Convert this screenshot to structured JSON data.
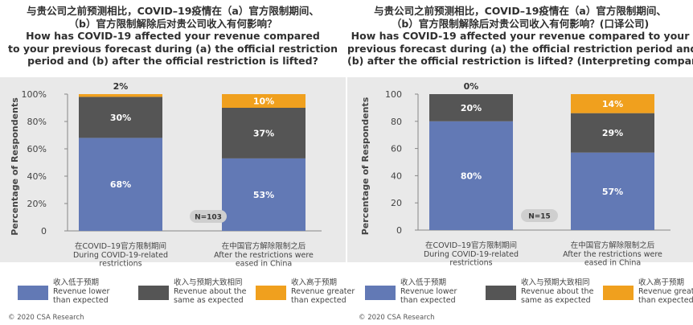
{
  "colors": {
    "lower": "#6279b5",
    "same": "#555555",
    "greater": "#f0a01e",
    "band": "#e9e9e9"
  },
  "legend": [
    {
      "key": "lower",
      "zh": "收入低于预期",
      "en1": "Revenue lower",
      "en2": "than expected"
    },
    {
      "key": "same",
      "zh": "收入与预期大致相同",
      "en1": "Revenue about the",
      "en2": "same as expected"
    },
    {
      "key": "greater",
      "zh": "收入高于预期",
      "en1": "Revenue greater",
      "en2": "than expected"
    }
  ],
  "chart_data": [
    {
      "type": "bar",
      "stacked": true,
      "title_zh": [
        "与贵公司之前预测相比，COVID–19疫情在（a）官方限制期间、",
        "（b）官方限制解除后对贵公司收入有何影响？"
      ],
      "title_en": [
        "How has COVID-19 affected your revenue compared",
        "to your previous forecast during (a) the official restriction",
        "period and (b) after the official restriction is lifted?"
      ],
      "ylabel": "Percentage of Respondents",
      "ylim": [
        0,
        100
      ],
      "yticks": [
        "0",
        "20%",
        "40%",
        "60%",
        "80%",
        "100%"
      ],
      "n_label": "N=103",
      "categories": [
        {
          "zh": "在COVID–19官方限制期间",
          "en": [
            "During COVID-19-related",
            "restrictions"
          ]
        },
        {
          "zh": "在中国官方解除限制之后",
          "en": [
            "After the restrictions were",
            "eased in China"
          ]
        }
      ],
      "series": [
        {
          "key": "lower",
          "values": [
            68,
            53
          ],
          "labels": [
            "68%",
            "53%"
          ]
        },
        {
          "key": "same",
          "values": [
            30,
            37
          ],
          "labels": [
            "30%",
            "37%"
          ]
        },
        {
          "key": "greater",
          "values": [
            2,
            10
          ],
          "labels": [
            "2%",
            "10%"
          ]
        }
      ],
      "copyright": "© 2020 CSA Research"
    },
    {
      "type": "bar",
      "stacked": true,
      "title_zh": [
        "与贵公司之前预测相比，COVID–19疫情在（a）官方限制期间、",
        "（b）官方限制解除后对贵公司收入有何影响？(口译公司)"
      ],
      "title_en": [
        "How has COVID-19 affected your revenue compared to your",
        "previous forecast during (a) the official restriction period and",
        "(b) after the official restriction is lifted? (Interpreting companies)"
      ],
      "ylabel": "Percentage of Respondents",
      "ylim": [
        0,
        100
      ],
      "yticks": [
        "0",
        "20",
        "40",
        "60",
        "80",
        "100"
      ],
      "n_label": "N=15",
      "categories": [
        {
          "zh": "在COVID–19官方限制期间",
          "en": [
            "During COVID-19-related",
            "restrictions"
          ]
        },
        {
          "zh": "在中国官方解除限制之后",
          "en": [
            "After the restrictions were",
            "eased in China"
          ]
        }
      ],
      "series": [
        {
          "key": "lower",
          "values": [
            80,
            57
          ],
          "labels": [
            "80%",
            "57%"
          ]
        },
        {
          "key": "same",
          "values": [
            20,
            29
          ],
          "labels": [
            "20%",
            "29%"
          ]
        },
        {
          "key": "greater",
          "values": [
            0,
            14
          ],
          "labels": [
            "0%",
            "14%"
          ]
        }
      ],
      "copyright": "© 2020 CSA Research"
    }
  ]
}
